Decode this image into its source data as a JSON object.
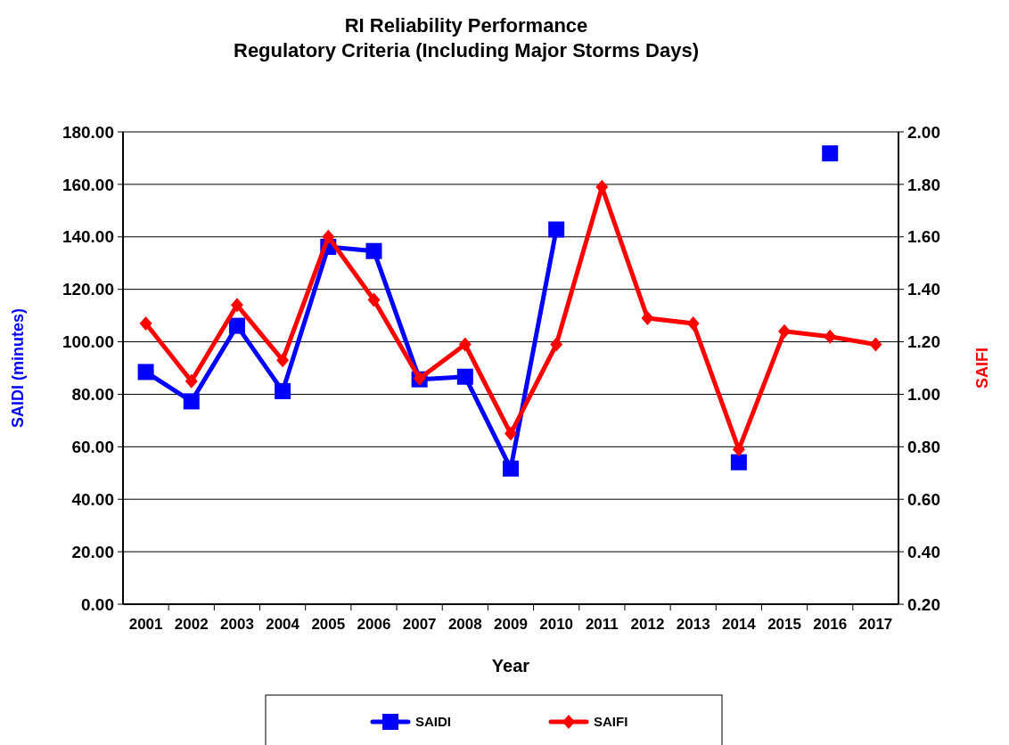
{
  "chart_data": {
    "type": "line",
    "title": "RI Reliability Performance",
    "subtitle": "Regulatory Criteria (Including Major Storms Days)",
    "xlabel": "Year",
    "ylabel": "SAIDI (minutes)",
    "y2label": "SAIFI",
    "categories": [
      "2001",
      "2002",
      "2003",
      "2004",
      "2005",
      "2006",
      "2007",
      "2008",
      "2009",
      "2010",
      "2011",
      "2012",
      "2013",
      "2014",
      "2015",
      "2016",
      "2017"
    ],
    "series": [
      {
        "name": "SAIDI",
        "color": "#0000ff",
        "marker": "square",
        "values": [
          88.5,
          77.3,
          106.1,
          81.2,
          136.2,
          134.6,
          85.7,
          86.7,
          51.7,
          142.8,
          null,
          null,
          null,
          54.1,
          null,
          171.8,
          null
        ]
      },
      {
        "name": "SAIFI",
        "color": "#ff0000",
        "marker": "diamond",
        "axis": "y2",
        "values": [
          1.27,
          1.05,
          1.34,
          1.13,
          1.6,
          1.36,
          1.06,
          1.19,
          0.85,
          1.19,
          1.79,
          1.29,
          1.27,
          0.79,
          1.24,
          1.22,
          1.19
        ]
      }
    ],
    "ylim": [
      0,
      180
    ],
    "yticks": [
      {
        "value": 0,
        "label": "0.00"
      },
      {
        "value": 20,
        "label": "20.00"
      },
      {
        "value": 40,
        "label": "40.00"
      },
      {
        "value": 60,
        "label": "60.00"
      },
      {
        "value": 80,
        "label": "80.00"
      },
      {
        "value": 100,
        "label": "100.00"
      },
      {
        "value": 120,
        "label": "120.00"
      },
      {
        "value": 140,
        "label": "140.00"
      },
      {
        "value": 160,
        "label": "160.00"
      },
      {
        "value": 180,
        "label": "180.00"
      }
    ],
    "y2lim": [
      0.2,
      2.0
    ],
    "y2ticks": [
      {
        "value": 0.2,
        "label": "0.20"
      },
      {
        "value": 0.4,
        "label": "0.40"
      },
      {
        "value": 0.6,
        "label": "0.60"
      },
      {
        "value": 0.8,
        "label": "0.80"
      },
      {
        "value": 1.0,
        "label": "1.00"
      },
      {
        "value": 1.2,
        "label": "1.20"
      },
      {
        "value": 1.4,
        "label": "1.40"
      },
      {
        "value": 1.6,
        "label": "1.60"
      },
      {
        "value": 1.8,
        "label": "1.80"
      },
      {
        "value": 2.0,
        "label": "2.00"
      }
    ],
    "grid": "y",
    "legend": "bottom"
  }
}
